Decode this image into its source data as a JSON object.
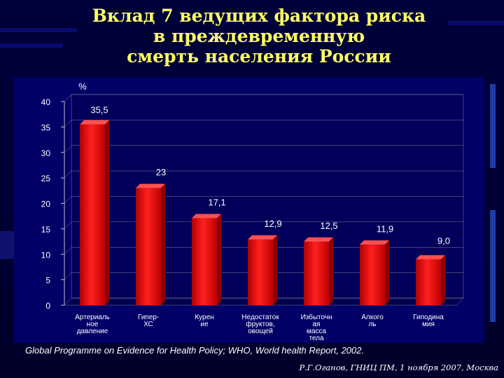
{
  "title_lines": [
    "Вклад 7 ведущих фактора риска",
    "в преждевременную",
    "смерть населения России"
  ],
  "source": "Global Programme on Evidence for Health Policy; WHO, World health Report, 2002.",
  "author": "Р.Г.Оганов, ГНИЦ ПМ, 1 ноября 2007, Москва",
  "colors": {
    "background": "#000033",
    "title": "#ffff66",
    "bar": "#e00000",
    "text": "#ffffff"
  },
  "chart_data": {
    "type": "bar",
    "ylabel": "%",
    "ylim": [
      0,
      40
    ],
    "yticks": [
      0,
      5,
      10,
      15,
      20,
      25,
      30,
      35,
      40
    ],
    "categories": [
      [
        "Артериаль",
        "ное",
        "давление"
      ],
      [
        "Гипер-",
        "ХС"
      ],
      [
        "Курен",
        "ие"
      ],
      [
        "Недостаток",
        "фруктов,",
        "овощей"
      ],
      [
        "Избыточн",
        "ая",
        "масса",
        "тела"
      ],
      [
        "Алкого",
        "ль"
      ],
      [
        "Гиподина",
        "мия"
      ]
    ],
    "values": [
      35.5,
      23,
      17.1,
      12.9,
      12.5,
      11.9,
      9.0
    ],
    "data_labels": [
      "35,5",
      "23",
      "17,1",
      "12,9",
      "12,5",
      "11,9",
      "9,0"
    ]
  }
}
